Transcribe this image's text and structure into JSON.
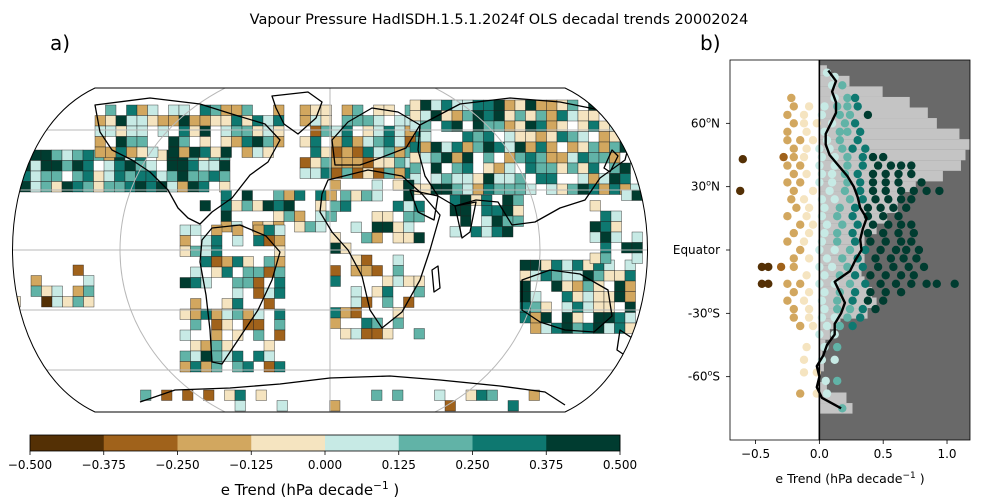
{
  "title": "Vapour Pressure HadISDH.1.5.1.2024f OLS decadal trends 20002024",
  "panel_a_label": "a)",
  "panel_b_label": "b)",
  "colorbar": {
    "ticks": [
      "−0.500",
      "−0.375",
      "−0.250",
      "−0.125",
      "0.000",
      "0.125",
      "0.250",
      "0.375",
      "0.500"
    ],
    "colors": [
      "#543005",
      "#a0621b",
      "#d2a75f",
      "#f5e4c0",
      "#c7eae5",
      "#61b3a7",
      "#0e7870",
      "#003c30"
    ],
    "label_main": "e Trend (hPa decade",
    "label_sup": "−1",
    "label_end": " )"
  },
  "chart_data": {
    "type": "scatter",
    "xlabel_main": "e Trend (hPa decade",
    "xlabel_sup": "−1",
    "xlabel_end": " )",
    "xlim": [
      -0.7,
      1.18
    ],
    "ylim": [
      -90,
      90
    ],
    "xticks": [
      {
        "value": -0.5,
        "label": "−0.5"
      },
      {
        "value": 0.0,
        "label": "0.0"
      },
      {
        "value": 0.5,
        "label": "0.5"
      },
      {
        "value": 1.0,
        "label": "1.0"
      }
    ],
    "yticks": [
      {
        "value": 60,
        "pre": "60",
        "post": "N"
      },
      {
        "value": 30,
        "pre": "30",
        "post": "N"
      },
      {
        "value": 0,
        "pre": "Equator",
        "post": ""
      },
      {
        "value": -30,
        "pre": "-30",
        "post": "S"
      },
      {
        "value": -60,
        "pre": "-60",
        "post": "S"
      }
    ],
    "land_fraction": {
      "lat": [
        -75,
        -70,
        -65,
        -60,
        -55,
        -50,
        -45,
        -40,
        -35,
        -30,
        -25,
        -20,
        -15,
        -10,
        -5,
        0,
        5,
        10,
        15,
        20,
        25,
        30,
        35,
        40,
        45,
        50,
        55,
        60,
        65,
        70,
        75,
        80,
        85
      ],
      "frac": [
        0.22,
        0.18,
        0.05,
        0.0,
        0.03,
        0.02,
        0.04,
        0.07,
        0.14,
        0.32,
        0.38,
        0.35,
        0.3,
        0.28,
        0.3,
        0.3,
        0.3,
        0.38,
        0.45,
        0.52,
        0.55,
        0.64,
        0.82,
        0.94,
        0.97,
        1.0,
        0.93,
        0.78,
        0.72,
        0.6,
        0.42,
        0.2,
        0.05
      ]
    },
    "zonal_mean": {
      "lat": [
        85,
        80,
        75,
        70,
        65,
        60,
        55,
        50,
        45,
        40,
        35,
        30,
        25,
        20,
        15,
        10,
        5,
        0,
        -5,
        -10,
        -15,
        -20,
        -25,
        -30,
        -35,
        -40,
        -45,
        -50,
        -55,
        -60,
        -65,
        -70,
        -75
      ],
      "value": [
        0.07,
        0.13,
        0.1,
        0.13,
        0.13,
        0.09,
        0.05,
        0.05,
        0.08,
        0.15,
        0.22,
        0.27,
        0.3,
        0.32,
        0.37,
        0.34,
        0.32,
        0.33,
        0.28,
        0.24,
        0.12,
        0.16,
        0.2,
        0.17,
        0.12,
        0.12,
        0.06,
        0.03,
        -0.02,
        0.0,
        -0.02,
        0.02,
        0.17
      ]
    },
    "points": [
      [
        0.06,
        84
      ],
      [
        0.12,
        82
      ],
      [
        0.1,
        78
      ],
      [
        0.18,
        78
      ],
      [
        0.22,
        72
      ],
      [
        0.28,
        72
      ],
      [
        -0.22,
        72
      ],
      [
        0.12,
        72
      ],
      [
        0.14,
        68
      ],
      [
        0.22,
        68
      ],
      [
        0.3,
        68
      ],
      [
        -0.2,
        68
      ],
      [
        -0.08,
        68
      ],
      [
        0.04,
        68
      ],
      [
        -0.25,
        64
      ],
      [
        -0.12,
        64
      ],
      [
        0.02,
        64
      ],
      [
        0.16,
        64
      ],
      [
        0.24,
        64
      ],
      [
        0.38,
        64
      ],
      [
        -0.2,
        60
      ],
      [
        -0.12,
        60
      ],
      [
        -0.02,
        60
      ],
      [
        0.1,
        60
      ],
      [
        0.2,
        60
      ],
      [
        0.28,
        60
      ],
      [
        -0.25,
        56
      ],
      [
        -0.1,
        56
      ],
      [
        0.04,
        56
      ],
      [
        0.16,
        56
      ],
      [
        0.22,
        56
      ],
      [
        0.32,
        56
      ],
      [
        -0.25,
        52
      ],
      [
        -0.15,
        52
      ],
      [
        -0.05,
        52
      ],
      [
        0.06,
        52
      ],
      [
        0.16,
        52
      ],
      [
        0.3,
        52
      ],
      [
        -0.2,
        48
      ],
      [
        -0.1,
        48
      ],
      [
        0.0,
        48
      ],
      [
        0.08,
        48
      ],
      [
        0.18,
        48
      ],
      [
        0.26,
        48
      ],
      [
        0.36,
        48
      ],
      [
        -0.6,
        43
      ],
      [
        -0.28,
        44
      ],
      [
        -0.2,
        44
      ],
      [
        -0.12,
        44
      ],
      [
        0.02,
        44
      ],
      [
        0.12,
        44
      ],
      [
        0.22,
        44
      ],
      [
        0.34,
        44
      ],
      [
        0.42,
        44
      ],
      [
        0.5,
        44
      ],
      [
        -0.25,
        40
      ],
      [
        -0.15,
        40
      ],
      [
        0.0,
        40
      ],
      [
        0.12,
        40
      ],
      [
        0.22,
        40
      ],
      [
        0.34,
        40
      ],
      [
        0.46,
        40
      ],
      [
        0.56,
        40
      ],
      [
        0.64,
        40
      ],
      [
        0.72,
        40
      ],
      [
        -0.2,
        36
      ],
      [
        -0.1,
        36
      ],
      [
        0.02,
        36
      ],
      [
        0.1,
        36
      ],
      [
        0.2,
        36
      ],
      [
        0.3,
        36
      ],
      [
        0.42,
        36
      ],
      [
        0.52,
        36
      ],
      [
        0.62,
        36
      ],
      [
        0.72,
        36
      ],
      [
        -0.25,
        32
      ],
      [
        -0.15,
        32
      ],
      [
        0.0,
        32
      ],
      [
        0.1,
        32
      ],
      [
        0.22,
        32
      ],
      [
        0.32,
        32
      ],
      [
        0.42,
        32
      ],
      [
        0.52,
        32
      ],
      [
        0.62,
        32
      ],
      [
        0.8,
        32
      ],
      [
        -0.62,
        28
      ],
      [
        -0.2,
        28
      ],
      [
        -0.05,
        28
      ],
      [
        0.08,
        28
      ],
      [
        0.2,
        28
      ],
      [
        0.32,
        28
      ],
      [
        0.42,
        28
      ],
      [
        0.52,
        28
      ],
      [
        0.64,
        28
      ],
      [
        0.74,
        28
      ],
      [
        0.84,
        28
      ],
      [
        0.94,
        28
      ],
      [
        -0.22,
        24
      ],
      [
        -0.12,
        24
      ],
      [
        0.02,
        24
      ],
      [
        0.12,
        24
      ],
      [
        0.24,
        24
      ],
      [
        0.34,
        24
      ],
      [
        0.44,
        24
      ],
      [
        0.54,
        24
      ],
      [
        0.64,
        24
      ],
      [
        0.72,
        24
      ],
      [
        -0.18,
        20
      ],
      [
        -0.08,
        20
      ],
      [
        0.04,
        20
      ],
      [
        0.16,
        20
      ],
      [
        0.28,
        20
      ],
      [
        0.38,
        20
      ],
      [
        0.48,
        20
      ],
      [
        0.58,
        20
      ],
      [
        0.68,
        20
      ],
      [
        -0.25,
        16
      ],
      [
        -0.1,
        16
      ],
      [
        0.02,
        16
      ],
      [
        0.14,
        16
      ],
      [
        0.26,
        16
      ],
      [
        0.38,
        16
      ],
      [
        0.5,
        16
      ],
      [
        0.62,
        16
      ],
      [
        -0.15,
        12
      ],
      [
        -0.05,
        12
      ],
      [
        0.06,
        12
      ],
      [
        0.18,
        12
      ],
      [
        0.3,
        12
      ],
      [
        0.42,
        12
      ],
      [
        0.54,
        12
      ],
      [
        0.64,
        12
      ],
      [
        0.72,
        12
      ],
      [
        -0.2,
        8
      ],
      [
        -0.08,
        8
      ],
      [
        0.04,
        8
      ],
      [
        0.14,
        8
      ],
      [
        0.26,
        8
      ],
      [
        0.38,
        8
      ],
      [
        0.5,
        8
      ],
      [
        0.62,
        8
      ],
      [
        0.74,
        8
      ],
      [
        -0.25,
        4
      ],
      [
        -0.12,
        4
      ],
      [
        0.02,
        4
      ],
      [
        0.14,
        4
      ],
      [
        0.28,
        4
      ],
      [
        0.4,
        4
      ],
      [
        0.52,
        4
      ],
      [
        0.64,
        4
      ],
      [
        0.72,
        4
      ],
      [
        -0.15,
        0
      ],
      [
        0.0,
        0
      ],
      [
        0.12,
        0
      ],
      [
        0.24,
        0
      ],
      [
        0.36,
        0
      ],
      [
        0.48,
        0
      ],
      [
        0.6,
        0
      ],
      [
        0.68,
        0
      ],
      [
        0.78,
        0
      ],
      [
        -0.2,
        -4
      ],
      [
        -0.08,
        -4
      ],
      [
        0.06,
        -4
      ],
      [
        0.18,
        -4
      ],
      [
        0.3,
        -4
      ],
      [
        0.44,
        -4
      ],
      [
        0.56,
        -4
      ],
      [
        0.66,
        -4
      ],
      [
        0.76,
        -4
      ],
      [
        -0.45,
        -8
      ],
      [
        -0.4,
        -8
      ],
      [
        -0.3,
        -8
      ],
      [
        -0.2,
        -8
      ],
      [
        0.0,
        -8
      ],
      [
        0.1,
        -8
      ],
      [
        0.22,
        -8
      ],
      [
        0.34,
        -8
      ],
      [
        0.46,
        -8
      ],
      [
        0.58,
        -8
      ],
      [
        0.7,
        -8
      ],
      [
        0.82,
        -8
      ],
      [
        -0.1,
        -12
      ],
      [
        0.04,
        -12
      ],
      [
        0.16,
        -12
      ],
      [
        0.28,
        -12
      ],
      [
        0.4,
        -12
      ],
      [
        0.52,
        -12
      ],
      [
        0.64,
        -12
      ],
      [
        0.74,
        -12
      ],
      [
        -0.45,
        -16
      ],
      [
        -0.4,
        -16
      ],
      [
        -0.25,
        -16
      ],
      [
        -0.15,
        -16
      ],
      [
        0.0,
        -16
      ],
      [
        0.12,
        -16
      ],
      [
        0.24,
        -16
      ],
      [
        0.36,
        -16
      ],
      [
        0.48,
        -16
      ],
      [
        0.6,
        -16
      ],
      [
        0.72,
        -16
      ],
      [
        0.84,
        -16
      ],
      [
        0.92,
        -16
      ],
      [
        1.06,
        -16
      ],
      [
        -0.2,
        -20
      ],
      [
        -0.08,
        -20
      ],
      [
        0.04,
        -20
      ],
      [
        0.16,
        -20
      ],
      [
        0.28,
        -20
      ],
      [
        0.4,
        -20
      ],
      [
        0.52,
        -20
      ],
      [
        0.64,
        -20
      ],
      [
        -0.25,
        -24
      ],
      [
        -0.12,
        -24
      ],
      [
        0.02,
        -24
      ],
      [
        0.14,
        -24
      ],
      [
        0.26,
        -24
      ],
      [
        0.38,
        -24
      ],
      [
        0.5,
        -24
      ],
      [
        -0.2,
        -28
      ],
      [
        -0.08,
        -28
      ],
      [
        0.04,
        -28
      ],
      [
        0.14,
        -28
      ],
      [
        0.24,
        -28
      ],
      [
        0.34,
        -28
      ],
      [
        0.44,
        -28
      ],
      [
        -0.2,
        -32
      ],
      [
        -0.08,
        -32
      ],
      [
        0.02,
        -32
      ],
      [
        0.12,
        -32
      ],
      [
        0.22,
        -32
      ],
      [
        0.32,
        -32
      ],
      [
        -0.15,
        -36
      ],
      [
        -0.05,
        -36
      ],
      [
        0.06,
        -36
      ],
      [
        0.16,
        -36
      ],
      [
        0.26,
        -36
      ],
      [
        0.0,
        -40
      ],
      [
        0.12,
        -40
      ],
      [
        -0.1,
        -46
      ],
      [
        0.04,
        -46
      ],
      [
        0.14,
        -46
      ],
      [
        -0.12,
        -52
      ],
      [
        0.02,
        -52
      ],
      [
        0.12,
        -52
      ],
      [
        -0.12,
        -58
      ],
      [
        -0.02,
        -58
      ],
      [
        0.05,
        -62
      ],
      [
        0.14,
        -62
      ],
      [
        -0.15,
        -68
      ],
      [
        -0.02,
        -68
      ],
      [
        0.06,
        -68
      ],
      [
        0.18,
        -75
      ]
    ]
  }
}
